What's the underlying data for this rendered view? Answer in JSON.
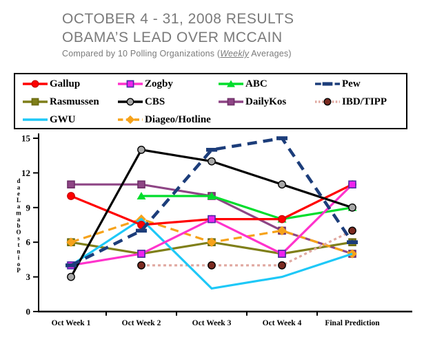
{
  "header": {
    "title_line1": "OCTOBER 4 - 31, 2008  RESULTS",
    "title_line2": "OBAMA’S LEAD OVER MCCAIN",
    "subtitle_prefix": "Compared by 10 Polling Organizations (",
    "subtitle_emphasis": "Weekly",
    "subtitle_suffix": " Averages)",
    "title_color": "#7a7a7a"
  },
  "legend": {
    "order": [
      "Gallup",
      "Zogby",
      "ABC",
      "Pew",
      "Rasmussen",
      "CBS",
      "DailyKos",
      "IBD/TIPP",
      "GWU",
      "Diageo/Hotline"
    ]
  },
  "chart_data": {
    "type": "line",
    "title": "Obama's lead over McCain, Oct 4-31 2008, by 10 polling organizations",
    "categories": [
      "Oct Week 1",
      "Oct Week 2",
      "Oct Week 3",
      "Oct Week 4",
      "Final Prediction"
    ],
    "ylabel": "Obama Lead Points",
    "ylabel_rendered_letters_top_to_bottom": "daeLamabOstnioP",
    "ylim": [
      0,
      15
    ],
    "yticks": [
      0,
      3,
      6,
      9,
      12,
      15
    ],
    "grid": false,
    "legend_position": "top-box",
    "series": [
      {
        "name": "Gallup",
        "values": [
          10,
          7.5,
          8,
          8,
          11
        ],
        "color": "#ff0000",
        "marker": "circle",
        "marker_fill": "#ff0000",
        "marker_stroke": "#cc0000",
        "dash": null
      },
      {
        "name": "Zogby",
        "values": [
          4,
          5,
          8,
          5,
          11
        ],
        "color": "#ff33cc",
        "marker": "square",
        "marker_fill": "#ee22ee",
        "marker_stroke": "#4b2ba6",
        "dash": null
      },
      {
        "name": "ABC",
        "values": [
          null,
          10,
          10,
          8,
          9
        ],
        "color": "#00dd2c",
        "marker": "triangle",
        "marker_fill": "#00dd2c",
        "marker_stroke": "#00aa22",
        "dash": null
      },
      {
        "name": "Pew",
        "values": [
          4,
          7,
          14,
          15,
          6
        ],
        "color": "#1c3d7a",
        "marker": "dash",
        "marker_fill": "#1c3d7a",
        "marker_stroke": "#1c3d7a",
        "dash": "14 9"
      },
      {
        "name": "Rasmussen",
        "values": [
          6,
          5,
          6,
          5,
          6
        ],
        "color": "#7f7f19",
        "marker": "square",
        "marker_fill": "#7f7f19",
        "marker_stroke": "#6a6a10",
        "dash": null
      },
      {
        "name": "CBS",
        "values": [
          3,
          14,
          13,
          11,
          9
        ],
        "color": "#000000",
        "marker": "circle",
        "marker_fill": "#a8a8a8",
        "marker_stroke": "#000000",
        "dash": null
      },
      {
        "name": "DailyKos",
        "values": [
          11,
          11,
          10,
          7,
          5
        ],
        "color": "#8e4585",
        "marker": "square",
        "marker_fill": "#8e4585",
        "marker_stroke": "#6e3068",
        "dash": null
      },
      {
        "name": "IBD/TIPP",
        "values": [
          null,
          4,
          4,
          4,
          7
        ],
        "color": "#e0a8a0",
        "marker": "circle",
        "marker_fill": "#7b2b21",
        "marker_stroke": "#000000",
        "dash": "4 4"
      },
      {
        "name": "GWU",
        "values": [
          4,
          8,
          2,
          3,
          5
        ],
        "color": "#1ec8f7",
        "marker": "none",
        "marker_fill": "#1ec8f7",
        "marker_stroke": "#1ec8f7",
        "dash": null
      },
      {
        "name": "Diageo/Hotline",
        "values": [
          6,
          8,
          6,
          7,
          5
        ],
        "color": "#f6a21a",
        "marker": "diamond",
        "marker_fill": "#f6a21a",
        "marker_stroke": "#d98c0e",
        "dash": "12 7"
      }
    ],
    "draw_order": [
      "DailyKos",
      "Rasmussen",
      "Diageo/Hotline",
      "IBD/TIPP",
      "GWU",
      "ABC",
      "Gallup",
      "Zogby",
      "CBS",
      "Pew"
    ]
  }
}
